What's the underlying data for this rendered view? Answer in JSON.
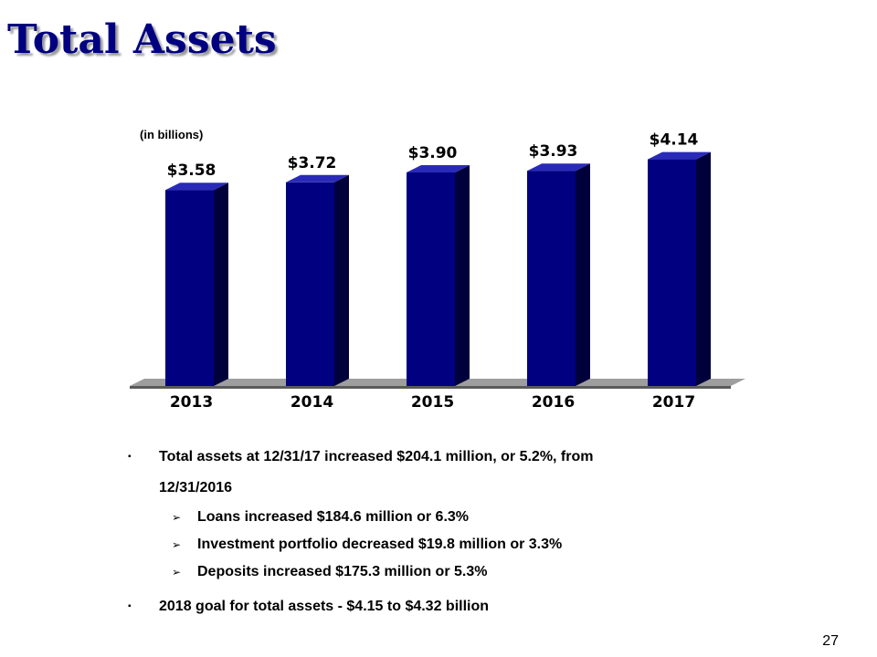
{
  "slide": {
    "title": "Total Assets",
    "units_note": "(in billions)",
    "page_number": "27"
  },
  "chart_data": {
    "type": "bar",
    "categories": [
      "2013",
      "2014",
      "2015",
      "2016",
      "2017"
    ],
    "values": [
      3.58,
      3.72,
      3.9,
      3.93,
      4.14
    ],
    "value_labels": [
      "$3.58",
      "$3.72",
      "$3.90",
      "$3.93",
      "$4.14"
    ],
    "title": "",
    "xlabel": "",
    "ylabel": "",
    "ylim": [
      0,
      4.5
    ],
    "grid": false,
    "legend": "none",
    "colors": {
      "bar_front": "#000080",
      "bar_side": "#00003a",
      "bar_top": "#2a2ab8",
      "floor": "#a0a0a0"
    }
  },
  "bullets": {
    "main": [
      {
        "marker": "▪",
        "text_line1": "Total assets at 12/31/17 increased $204.1 million, or 5.2%, from",
        "text_line2": "12/31/2016"
      },
      {
        "marker": "▪",
        "text": "2018 goal for total assets - $4.15 to $4.32 billion"
      }
    ],
    "sub": [
      {
        "marker": "➢",
        "text": "Loans increased $184.6 million or 6.3%"
      },
      {
        "marker": "➢",
        "text": "Investment portfolio decreased $19.8 million or 3.3%"
      },
      {
        "marker": "➢",
        "text": "Deposits increased $175.3 million or 5.3%"
      }
    ]
  }
}
